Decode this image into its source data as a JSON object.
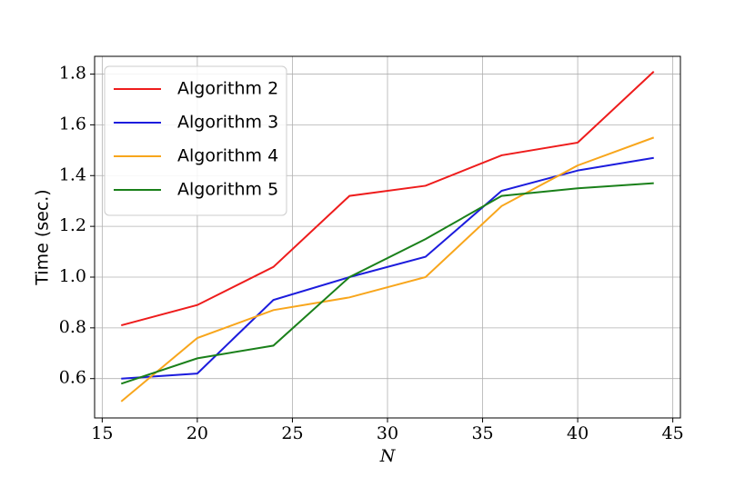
{
  "chart_data": {
    "type": "line",
    "xlabel": "N",
    "ylabel": "Time (sec.)",
    "x": [
      16,
      20,
      24,
      28,
      32,
      36,
      40,
      44
    ],
    "series": [
      {
        "name": "Algorithm 2",
        "color": "#ee1c1c",
        "values": [
          0.81,
          0.89,
          1.04,
          1.32,
          1.36,
          1.48,
          1.53,
          1.81
        ]
      },
      {
        "name": "Algorithm 3",
        "color": "#1c1cdd",
        "values": [
          0.6,
          0.62,
          0.91,
          1.0,
          1.08,
          1.34,
          1.42,
          1.47
        ]
      },
      {
        "name": "Algorithm 4",
        "color": "#f8a61c",
        "values": [
          0.51,
          0.76,
          0.87,
          0.92,
          1.0,
          1.28,
          1.44,
          1.55
        ]
      },
      {
        "name": "Algorithm 5",
        "color": "#1a801a",
        "values": [
          0.58,
          0.68,
          0.73,
          1.0,
          1.15,
          1.32,
          1.35,
          1.37
        ]
      }
    ],
    "xlim": [
      14.6,
      45.4
    ],
    "ylim": [
      0.445,
      1.87
    ],
    "xticks": [
      15,
      20,
      25,
      30,
      35,
      40,
      45
    ],
    "yticks": [
      0.6,
      0.8,
      {
        "value": 1.0,
        "label": "1.0"
      },
      1.2,
      1.4,
      1.6,
      1.8
    ],
    "grid": true,
    "legend": "upper left"
  }
}
